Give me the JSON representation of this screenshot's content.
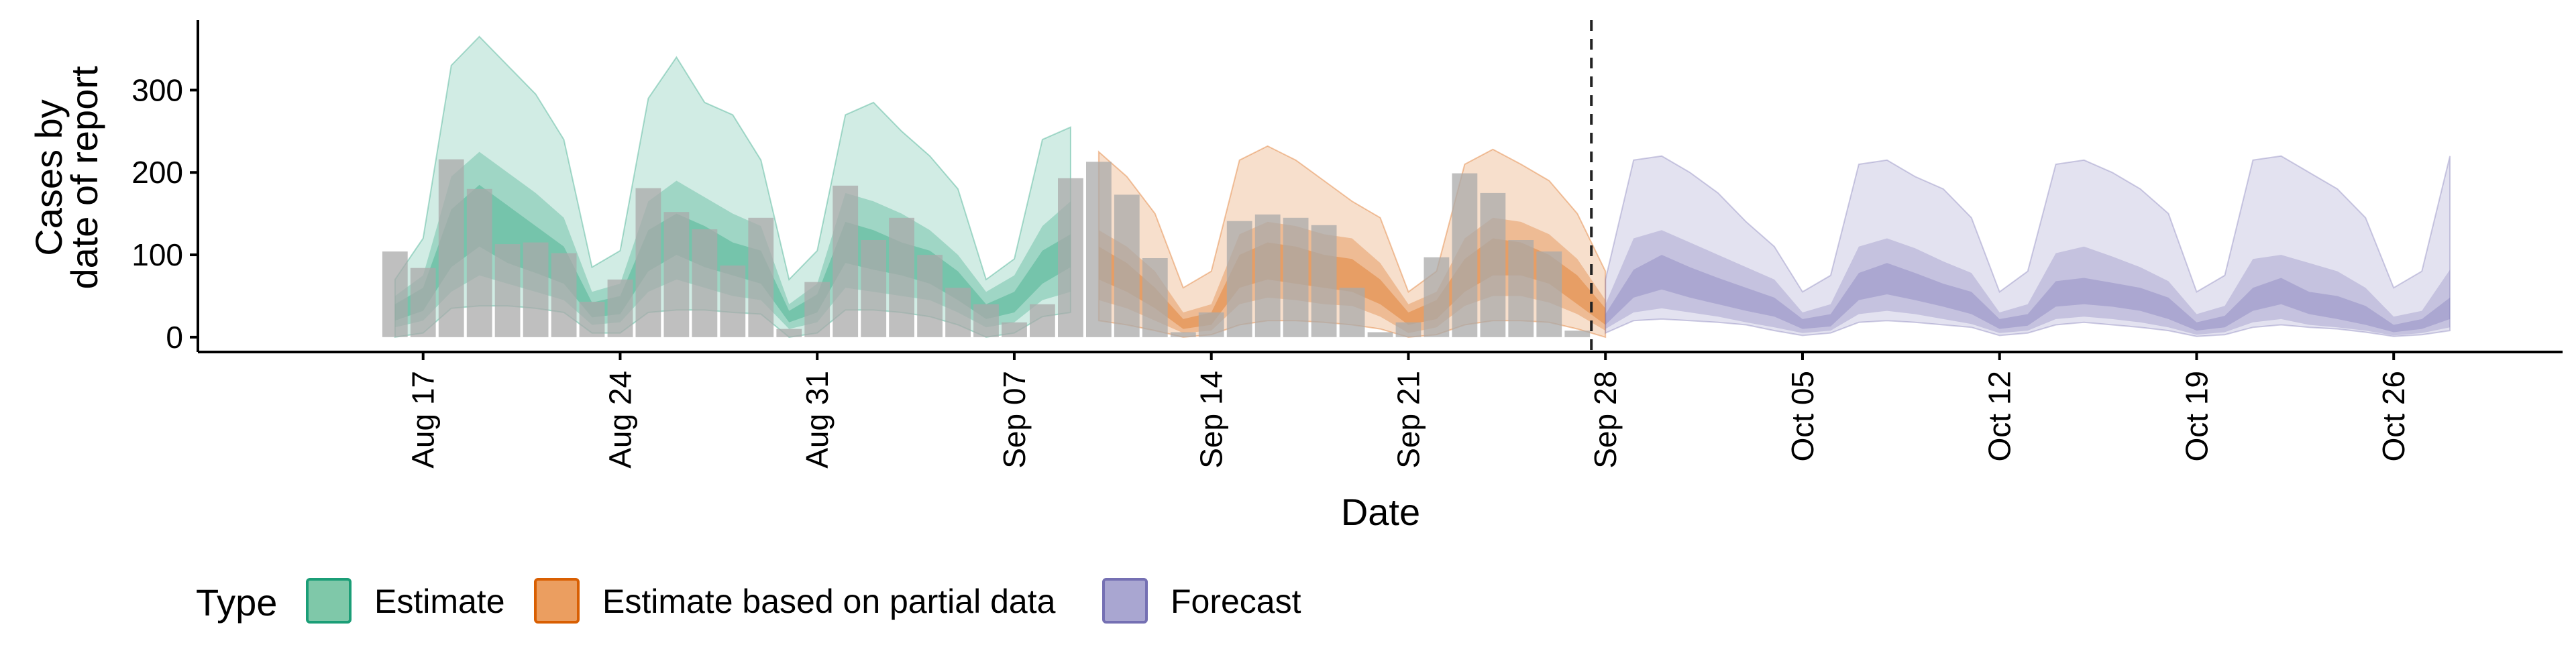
{
  "chart_data": {
    "type": "area",
    "xlabel": "Date",
    "ylabel_lines": [
      "Cases by",
      "date of report"
    ],
    "x_ticks": [
      "Aug 17",
      "Aug 24",
      "Aug 31",
      "Sep 07",
      "Sep 14",
      "Sep 21",
      "Sep 28",
      "Oct 05",
      "Oct 12",
      "Oct 19",
      "Oct 26"
    ],
    "x_tick_dates": [
      "2020-08-17",
      "2020-08-24",
      "2020-08-31",
      "2020-09-07",
      "2020-09-14",
      "2020-09-21",
      "2020-09-28",
      "2020-10-05",
      "2020-10-12",
      "2020-10-19",
      "2020-10-26"
    ],
    "y_ticks": [
      0,
      100,
      200,
      300
    ],
    "ylim": [
      -18,
      385
    ],
    "xlim": [
      "2020-08-09",
      "2020-11-01"
    ],
    "forecast_cutoff": "2020-09-27",
    "legend": {
      "title": "Type",
      "position": "bottom",
      "items": [
        {
          "label": "Estimate",
          "fill": "#7fc8a9",
          "stroke": "#1b9e77"
        },
        {
          "label": "Estimate based on partial data",
          "fill": "#eb9e60",
          "stroke": "#d95f02"
        },
        {
          "label": "Forecast",
          "fill": "#a9a6d1",
          "stroke": "#7570b3"
        }
      ]
    },
    "colors": {
      "estimate": "#1b9e77",
      "partial": "#d95f02",
      "forecast": "#7570b3",
      "bars": "#aaaaaa",
      "cutoff_line": "#222222"
    },
    "reported_cases": {
      "start_date": "2020-08-16",
      "values": [
        104,
        84,
        216,
        180,
        113,
        115,
        102,
        43,
        70,
        181,
        152,
        131,
        87,
        145,
        10,
        67,
        184,
        118,
        145,
        100,
        60,
        40,
        18,
        40,
        193,
        213,
        173,
        96,
        6,
        30,
        141,
        149,
        145,
        136,
        60,
        6,
        18,
        97,
        199,
        175,
        118,
        104,
        8
      ]
    },
    "series": [
      {
        "name": "Estimate",
        "start_date": "2020-08-16",
        "median": [
          25,
          40,
          100,
          150,
          120,
          100,
          80,
          30,
          35,
          95,
          120,
          105,
          90,
          80,
          25,
          40,
          110,
          100,
          90,
          80,
          60,
          30,
          40,
          80,
          100
        ],
        "inner_low": [
          20,
          32,
          85,
          110,
          90,
          78,
          65,
          24,
          28,
          80,
          100,
          85,
          75,
          65,
          18,
          30,
          90,
          82,
          75,
          65,
          45,
          22,
          30,
          65,
          85
        ],
        "inner_high": [
          40,
          60,
          155,
          185,
          160,
          135,
          110,
          42,
          50,
          130,
          150,
          135,
          115,
          105,
          32,
          52,
          140,
          130,
          115,
          105,
          80,
          40,
          55,
          105,
          125
        ],
        "mid_low": [
          12,
          20,
          55,
          75,
          65,
          55,
          45,
          15,
          18,
          55,
          70,
          60,
          50,
          45,
          10,
          18,
          60,
          55,
          50,
          45,
          30,
          12,
          18,
          45,
          55
        ],
        "mid_high": [
          50,
          75,
          195,
          225,
          200,
          175,
          145,
          55,
          65,
          165,
          190,
          170,
          150,
          135,
          40,
          65,
          175,
          165,
          150,
          130,
          100,
          55,
          75,
          135,
          165
        ],
        "outer_low": [
          0,
          5,
          35,
          38,
          38,
          35,
          30,
          5,
          5,
          30,
          33,
          33,
          30,
          28,
          0,
          5,
          33,
          33,
          30,
          25,
          15,
          0,
          5,
          25,
          30
        ],
        "outer_high": [
          70,
          120,
          330,
          365,
          330,
          295,
          240,
          85,
          105,
          290,
          340,
          285,
          270,
          215,
          70,
          105,
          270,
          285,
          250,
          220,
          180,
          70,
          95,
          240,
          255
        ]
      },
      {
        "name": "Estimate based on partial data",
        "start_date": "2020-09-10",
        "median": [
          90,
          70,
          45,
          15,
          20,
          75,
          90,
          85,
          75,
          70,
          55,
          20,
          30,
          70,
          95,
          95,
          80,
          55,
          25
        ],
        "inner_low": [
          70,
          55,
          35,
          10,
          15,
          60,
          70,
          65,
          60,
          55,
          40,
          15,
          22,
          55,
          75,
          75,
          65,
          40,
          15
        ],
        "inner_high": [
          110,
          90,
          60,
          22,
          30,
          100,
          115,
          110,
          100,
          95,
          70,
          30,
          45,
          95,
          120,
          115,
          100,
          75,
          35
        ],
        "mid_low": [
          45,
          35,
          20,
          5,
          8,
          40,
          48,
          45,
          40,
          38,
          25,
          5,
          12,
          38,
          50,
          50,
          42,
          28,
          8
        ],
        "mid_high": [
          130,
          110,
          80,
          30,
          40,
          125,
          140,
          135,
          125,
          120,
          90,
          40,
          55,
          120,
          145,
          140,
          125,
          95,
          45
        ],
        "outer_low": [
          20,
          15,
          8,
          0,
          3,
          15,
          20,
          20,
          18,
          15,
          10,
          0,
          3,
          15,
          20,
          20,
          18,
          10,
          0
        ],
        "outer_high": [
          225,
          195,
          150,
          60,
          80,
          215,
          232,
          215,
          190,
          165,
          145,
          55,
          80,
          210,
          228,
          210,
          190,
          150,
          80
        ]
      },
      {
        "name": "Forecast",
        "start_date": "2020-09-28",
        "median": [
          20,
          65,
          75,
          65,
          55,
          45,
          35,
          15,
          20,
          60,
          70,
          60,
          50,
          40,
          15,
          20,
          50,
          55,
          50,
          45,
          35,
          12,
          18,
          45,
          55,
          40,
          35,
          25,
          10,
          15,
          35
        ],
        "inner_low": [
          15,
          48,
          58,
          48,
          40,
          32,
          25,
          10,
          13,
          45,
          52,
          45,
          37,
          28,
          10,
          14,
          37,
          40,
          37,
          32,
          22,
          8,
          12,
          32,
          40,
          28,
          22,
          15,
          6,
          10,
          22
        ],
        "inner_high": [
          28,
          82,
          100,
          85,
          72,
          60,
          48,
          22,
          28,
          78,
          90,
          78,
          65,
          55,
          22,
          28,
          68,
          72,
          66,
          60,
          48,
          18,
          26,
          60,
          72,
          55,
          50,
          38,
          15,
          22,
          48
        ],
        "mid_low": [
          10,
          30,
          35,
          30,
          25,
          18,
          12,
          5,
          8,
          28,
          32,
          28,
          22,
          16,
          5,
          8,
          22,
          25,
          22,
          18,
          12,
          3,
          6,
          18,
          22,
          15,
          12,
          8,
          2,
          5,
          12
        ],
        "mid_high": [
          40,
          120,
          130,
          115,
          100,
          85,
          70,
          30,
          40,
          110,
          120,
          108,
          92,
          78,
          30,
          40,
          102,
          110,
          98,
          85,
          68,
          28,
          38,
          95,
          100,
          90,
          80,
          60,
          25,
          32,
          82
        ],
        "outer_low": [
          5,
          20,
          22,
          20,
          18,
          15,
          8,
          2,
          5,
          18,
          20,
          18,
          15,
          12,
          2,
          5,
          15,
          18,
          15,
          12,
          8,
          1,
          3,
          12,
          15,
          12,
          10,
          6,
          1,
          3,
          8
        ],
        "outer_high": [
          70,
          215,
          220,
          200,
          175,
          140,
          110,
          55,
          75,
          210,
          215,
          195,
          180,
          145,
          55,
          80,
          210,
          215,
          200,
          180,
          150,
          55,
          75,
          215,
          220,
          200,
          180,
          145,
          60,
          80,
          220
        ]
      }
    ]
  }
}
